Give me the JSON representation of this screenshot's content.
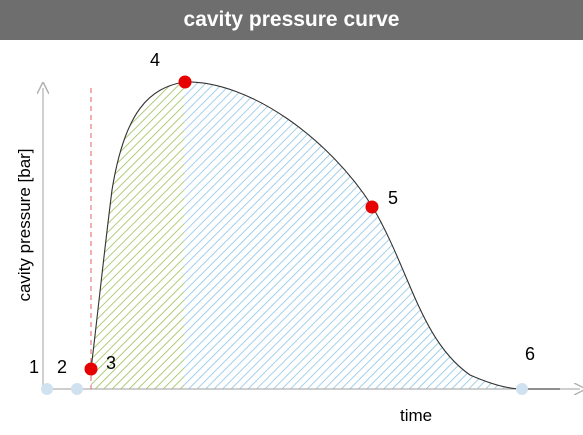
{
  "title": "cavity pressure curve",
  "axes": {
    "y_label": "cavity pressure [bar]",
    "x_label": "time"
  },
  "points": [
    {
      "label": "1",
      "color": "#d0e2f0"
    },
    {
      "label": "2",
      "color": "#d0e2f0"
    },
    {
      "label": "3",
      "color": "#e60000"
    },
    {
      "label": "4",
      "color": "#e60000"
    },
    {
      "label": "5",
      "color": "#e60000"
    },
    {
      "label": "6",
      "color": "#d0e2f0"
    }
  ],
  "colors": {
    "title_bar": "#6e6e6e",
    "green_hatch": "#9cc05a",
    "blue_hatch": "#8cc4e6",
    "marker_red": "#e60000",
    "marker_light": "#d0e2f0",
    "dashed_line": "#e06060",
    "axis": "#b0b0b0",
    "curve": "#333333"
  }
}
